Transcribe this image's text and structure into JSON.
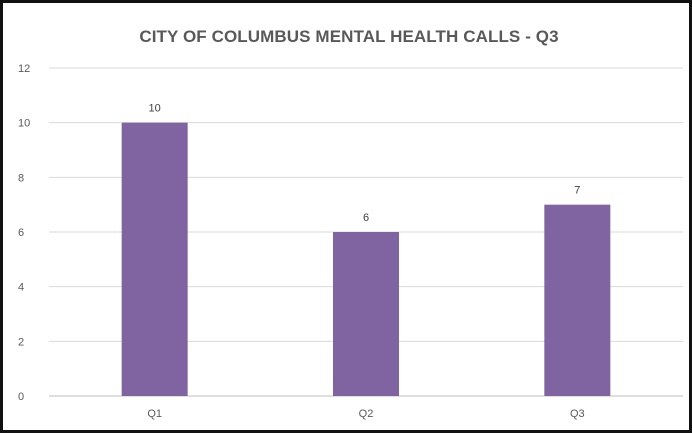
{
  "chart_data": {
    "type": "bar",
    "title": "CITY OF COLUMBUS MENTAL HEALTH CALLS - Q3",
    "categories": [
      "Q1",
      "Q2",
      "Q3"
    ],
    "values": [
      10,
      6,
      7
    ],
    "data_labels": [
      "10",
      "6",
      "7"
    ],
    "ylim": [
      0,
      12
    ],
    "yticks": [
      0,
      2,
      4,
      6,
      8,
      10,
      12
    ],
    "grid": true,
    "legend": "none",
    "bar_color": "#8064A2",
    "grid_color": "#D9D9D9",
    "axis_color": "#BFBFBF",
    "text_color": "#595959"
  }
}
